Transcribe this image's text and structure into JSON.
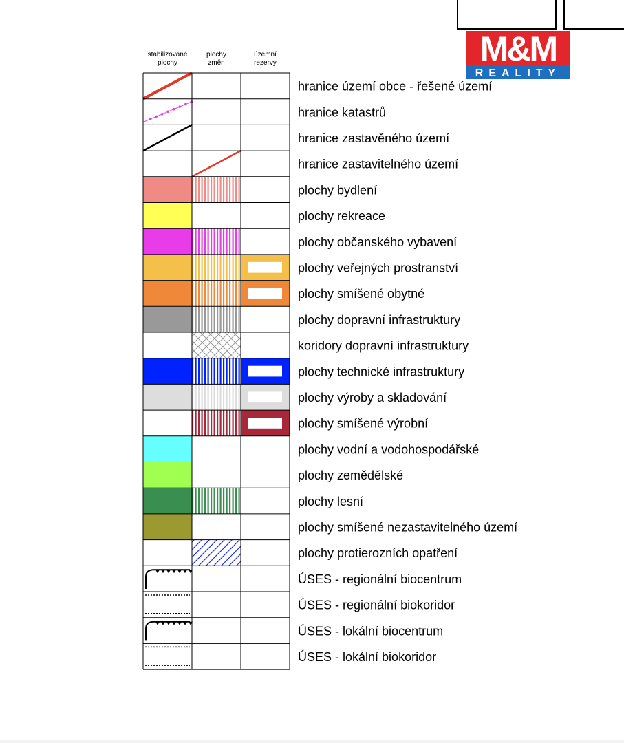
{
  "logo": {
    "brand": "M&M",
    "tagline": "REALITY"
  },
  "columns": [
    [
      "stabilizované",
      "plochy"
    ],
    [
      "plochy",
      "změn"
    ],
    [
      "územní",
      "rezervy"
    ]
  ],
  "rows": [
    "hranice území obce - řešené území",
    "hranice katastrů",
    "hranice zastavěného území",
    "hranice zastavitelného území",
    "plochy bydlení",
    "plochy rekreace",
    "plochy občanského vybavení",
    "plochy veřejných prostranství",
    "plochy smíšené obytné",
    "plochy dopravní infrastruktury",
    "koridory dopravní infrastruktury",
    "plochy technické infrastruktury",
    "plochy výroby a skladování",
    "plochy smíšené výrobní",
    "plochy vodní a vodohospodářské",
    "plochy zemědělské",
    "plochy lesní",
    "plochy smíšené nezastavitelného území",
    "plochy protierozních opatření",
    "ÚSES - regionální biocentrum",
    "ÚSES - regionální biokoridor",
    "ÚSES - lokální biocentrum",
    "ÚSES - lokální biokoridor"
  ]
}
